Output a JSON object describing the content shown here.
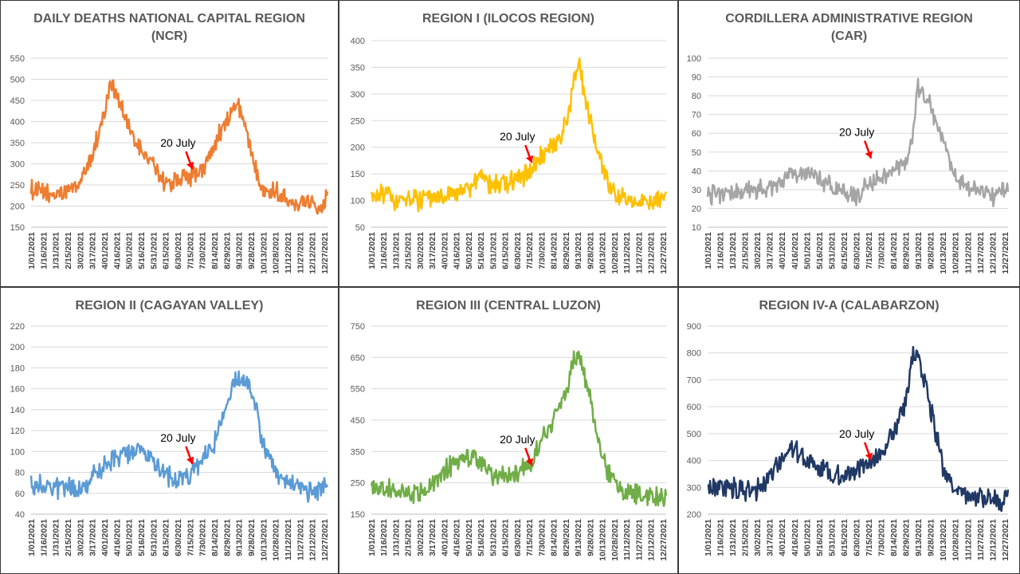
{
  "date_ticks": [
    "1/01/2021",
    "1/16/2021",
    "1/31/2021",
    "2/15/2021",
    "3/02/2021",
    "3/17/2021",
    "4/01/2021",
    "4/16/2021",
    "5/01/2021",
    "5/16/2021",
    "5/31/2021",
    "6/15/2021",
    "6/30/2021",
    "7/15/2021",
    "7/30/2021",
    "8/14/2021",
    "8/29/2021",
    "9/13/2021",
    "9/28/2021",
    "10/13/2021",
    "10/28/2021",
    "11/12/2021",
    "11/27/2021",
    "12/12/2021",
    "12/27/2021"
  ],
  "chart_data": [
    {
      "type": "line",
      "title": "DAILY DEATHS NATIONAL CAPITAL REGION",
      "subtitle": "(NCR)",
      "color": "#ED7D31",
      "ylim": [
        150,
        550
      ],
      "yticks": [
        150,
        200,
        250,
        300,
        350,
        400,
        450,
        500,
        550
      ],
      "grid": true,
      "annotation": {
        "text": "20 July",
        "date": "7/20/2021",
        "value": 280
      },
      "series": [
        {
          "x_dates": [
            "1/01/2021",
            "1/16/2021",
            "1/31/2021",
            "2/15/2021",
            "3/02/2021",
            "3/17/2021",
            "4/01/2021",
            "4/08/2021",
            "4/16/2021",
            "5/01/2021",
            "5/16/2021",
            "5/31/2021",
            "6/15/2021",
            "6/30/2021",
            "7/15/2021",
            "7/30/2021",
            "8/14/2021",
            "8/29/2021",
            "9/06/2021",
            "9/13/2021",
            "9/28/2021",
            "10/13/2021",
            "10/28/2021",
            "11/12/2021",
            "11/27/2021",
            "12/12/2021",
            "12/27/2021",
            "12/31/2021"
          ],
          "values": [
            240,
            230,
            225,
            235,
            255,
            320,
            420,
            490,
            470,
            380,
            330,
            300,
            250,
            265,
            270,
            280,
            350,
            400,
            430,
            440,
            330,
            240,
            235,
            220,
            205,
            210,
            200,
            255
          ]
        }
      ]
    },
    {
      "type": "line",
      "title": "REGION I (ILOCOS REGION)",
      "color": "#FFC000",
      "ylim": [
        50,
        400
      ],
      "yticks": [
        50,
        100,
        150,
        200,
        250,
        300,
        350,
        400
      ],
      "grid": true,
      "annotation": {
        "text": "20 July",
        "date": "7/20/2021",
        "value": 165
      },
      "series": [
        {
          "x_dates": [
            "1/01/2021",
            "1/16/2021",
            "1/31/2021",
            "2/15/2021",
            "3/02/2021",
            "3/17/2021",
            "4/01/2021",
            "4/16/2021",
            "5/01/2021",
            "5/16/2021",
            "5/31/2021",
            "6/15/2021",
            "6/30/2021",
            "7/15/2021",
            "7/30/2021",
            "8/14/2021",
            "8/29/2021",
            "9/06/2021",
            "9/13/2021",
            "9/28/2021",
            "10/13/2021",
            "10/28/2021",
            "11/12/2021",
            "11/27/2021",
            "12/12/2021",
            "12/27/2021",
            "12/31/2021"
          ],
          "values": [
            105,
            110,
            100,
            100,
            100,
            105,
            110,
            115,
            125,
            140,
            135,
            130,
            140,
            155,
            180,
            205,
            240,
            300,
            365,
            250,
            160,
            110,
            100,
            100,
            100,
            100,
            105
          ]
        }
      ]
    },
    {
      "type": "line",
      "title": "CORDILLERA ADMINISTRATIVE REGION",
      "subtitle": "(CAR)",
      "color": "#A5A5A5",
      "ylim": [
        10,
        100
      ],
      "yticks": [
        10,
        20,
        30,
        40,
        50,
        60,
        70,
        80,
        90,
        100
      ],
      "grid": true,
      "annotation": {
        "text": "20 July",
        "date": "7/20/2021",
        "value": 45
      },
      "series": [
        {
          "x_dates": [
            "1/01/2021",
            "1/16/2021",
            "1/31/2021",
            "2/15/2021",
            "3/02/2021",
            "3/17/2021",
            "4/01/2021",
            "4/16/2021",
            "5/01/2021",
            "5/16/2021",
            "5/31/2021",
            "6/15/2021",
            "6/30/2021",
            "7/15/2021",
            "7/30/2021",
            "8/14/2021",
            "8/29/2021",
            "9/06/2021",
            "9/13/2021",
            "9/28/2021",
            "10/13/2021",
            "10/28/2021",
            "11/12/2021",
            "11/27/2021",
            "12/12/2021",
            "12/27/2021",
            "12/31/2021"
          ],
          "values": [
            28,
            27,
            28,
            30,
            30,
            32,
            35,
            40,
            38,
            36,
            32,
            28,
            27,
            33,
            36,
            40,
            45,
            55,
            85,
            75,
            55,
            38,
            32,
            28,
            27,
            28,
            30
          ]
        }
      ]
    },
    {
      "type": "line",
      "title": "REGION II (CAGAYAN VALLEY)",
      "color": "#5B9BD5",
      "ylim": [
        40,
        220
      ],
      "yticks": [
        40,
        60,
        80,
        100,
        120,
        140,
        160,
        180,
        200,
        220
      ],
      "grid": true,
      "annotation": {
        "text": "20 July",
        "date": "7/20/2021",
        "value": 85
      },
      "series": [
        {
          "x_dates": [
            "1/01/2021",
            "1/16/2021",
            "1/31/2021",
            "2/15/2021",
            "3/02/2021",
            "3/17/2021",
            "4/01/2021",
            "4/16/2021",
            "5/01/2021",
            "5/16/2021",
            "5/31/2021",
            "6/15/2021",
            "6/30/2021",
            "7/15/2021",
            "7/30/2021",
            "8/14/2021",
            "8/29/2021",
            "9/06/2021",
            "9/13/2021",
            "9/28/2021",
            "10/13/2021",
            "10/28/2021",
            "11/12/2021",
            "11/27/2021",
            "12/12/2021",
            "12/27/2021",
            "12/31/2021"
          ],
          "values": [
            70,
            68,
            65,
            65,
            62,
            75,
            88,
            95,
            98,
            100,
            90,
            75,
            72,
            78,
            90,
            110,
            140,
            165,
            170,
            160,
            110,
            80,
            70,
            65,
            62,
            65,
            70
          ]
        }
      ]
    },
    {
      "type": "line",
      "title": "REGION III (CENTRAL LUZON)",
      "color": "#70AD47",
      "ylim": [
        150,
        750
      ],
      "yticks": [
        150,
        250,
        350,
        450,
        550,
        650,
        750
      ],
      "grid": true,
      "annotation": {
        "text": "20 July",
        "date": "7/20/2021",
        "value": 295
      },
      "series": [
        {
          "x_dates": [
            "1/01/2021",
            "1/16/2021",
            "1/31/2021",
            "2/15/2021",
            "3/02/2021",
            "3/17/2021",
            "4/01/2021",
            "4/16/2021",
            "5/01/2021",
            "5/16/2021",
            "5/31/2021",
            "6/15/2021",
            "6/30/2021",
            "7/15/2021",
            "7/30/2021",
            "8/14/2021",
            "8/29/2021",
            "9/06/2021",
            "9/13/2021",
            "9/28/2021",
            "10/13/2021",
            "10/28/2021",
            "11/12/2021",
            "11/27/2021",
            "12/12/2021",
            "12/27/2021",
            "12/31/2021"
          ],
          "values": [
            240,
            230,
            225,
            220,
            215,
            245,
            290,
            320,
            330,
            320,
            270,
            265,
            280,
            300,
            380,
            450,
            540,
            620,
            660,
            520,
            330,
            250,
            220,
            210,
            205,
            205,
            210
          ]
        }
      ]
    },
    {
      "type": "line",
      "title": "REGION IV-A (CALABARZON)",
      "color": "#203864",
      "ylim": [
        200,
        900
      ],
      "yticks": [
        200,
        300,
        400,
        500,
        600,
        700,
        800,
        900
      ],
      "grid": true,
      "annotation": {
        "text": "20 July",
        "date": "7/20/2021",
        "value": 390
      },
      "series": [
        {
          "x_dates": [
            "1/01/2021",
            "1/16/2021",
            "1/31/2021",
            "2/15/2021",
            "3/02/2021",
            "3/17/2021",
            "4/01/2021",
            "4/16/2021",
            "5/01/2021",
            "5/16/2021",
            "5/31/2021",
            "6/15/2021",
            "6/30/2021",
            "7/15/2021",
            "7/30/2021",
            "8/14/2021",
            "8/29/2021",
            "9/06/2021",
            "9/13/2021",
            "9/28/2021",
            "10/13/2021",
            "10/28/2021",
            "11/12/2021",
            "11/27/2021",
            "12/12/2021",
            "12/27/2021",
            "12/31/2021"
          ],
          "values": [
            300,
            295,
            295,
            290,
            295,
            330,
            410,
            450,
            400,
            380,
            340,
            340,
            370,
            390,
            410,
            500,
            620,
            780,
            790,
            600,
            380,
            290,
            270,
            255,
            255,
            255,
            270
          ]
        }
      ]
    }
  ]
}
